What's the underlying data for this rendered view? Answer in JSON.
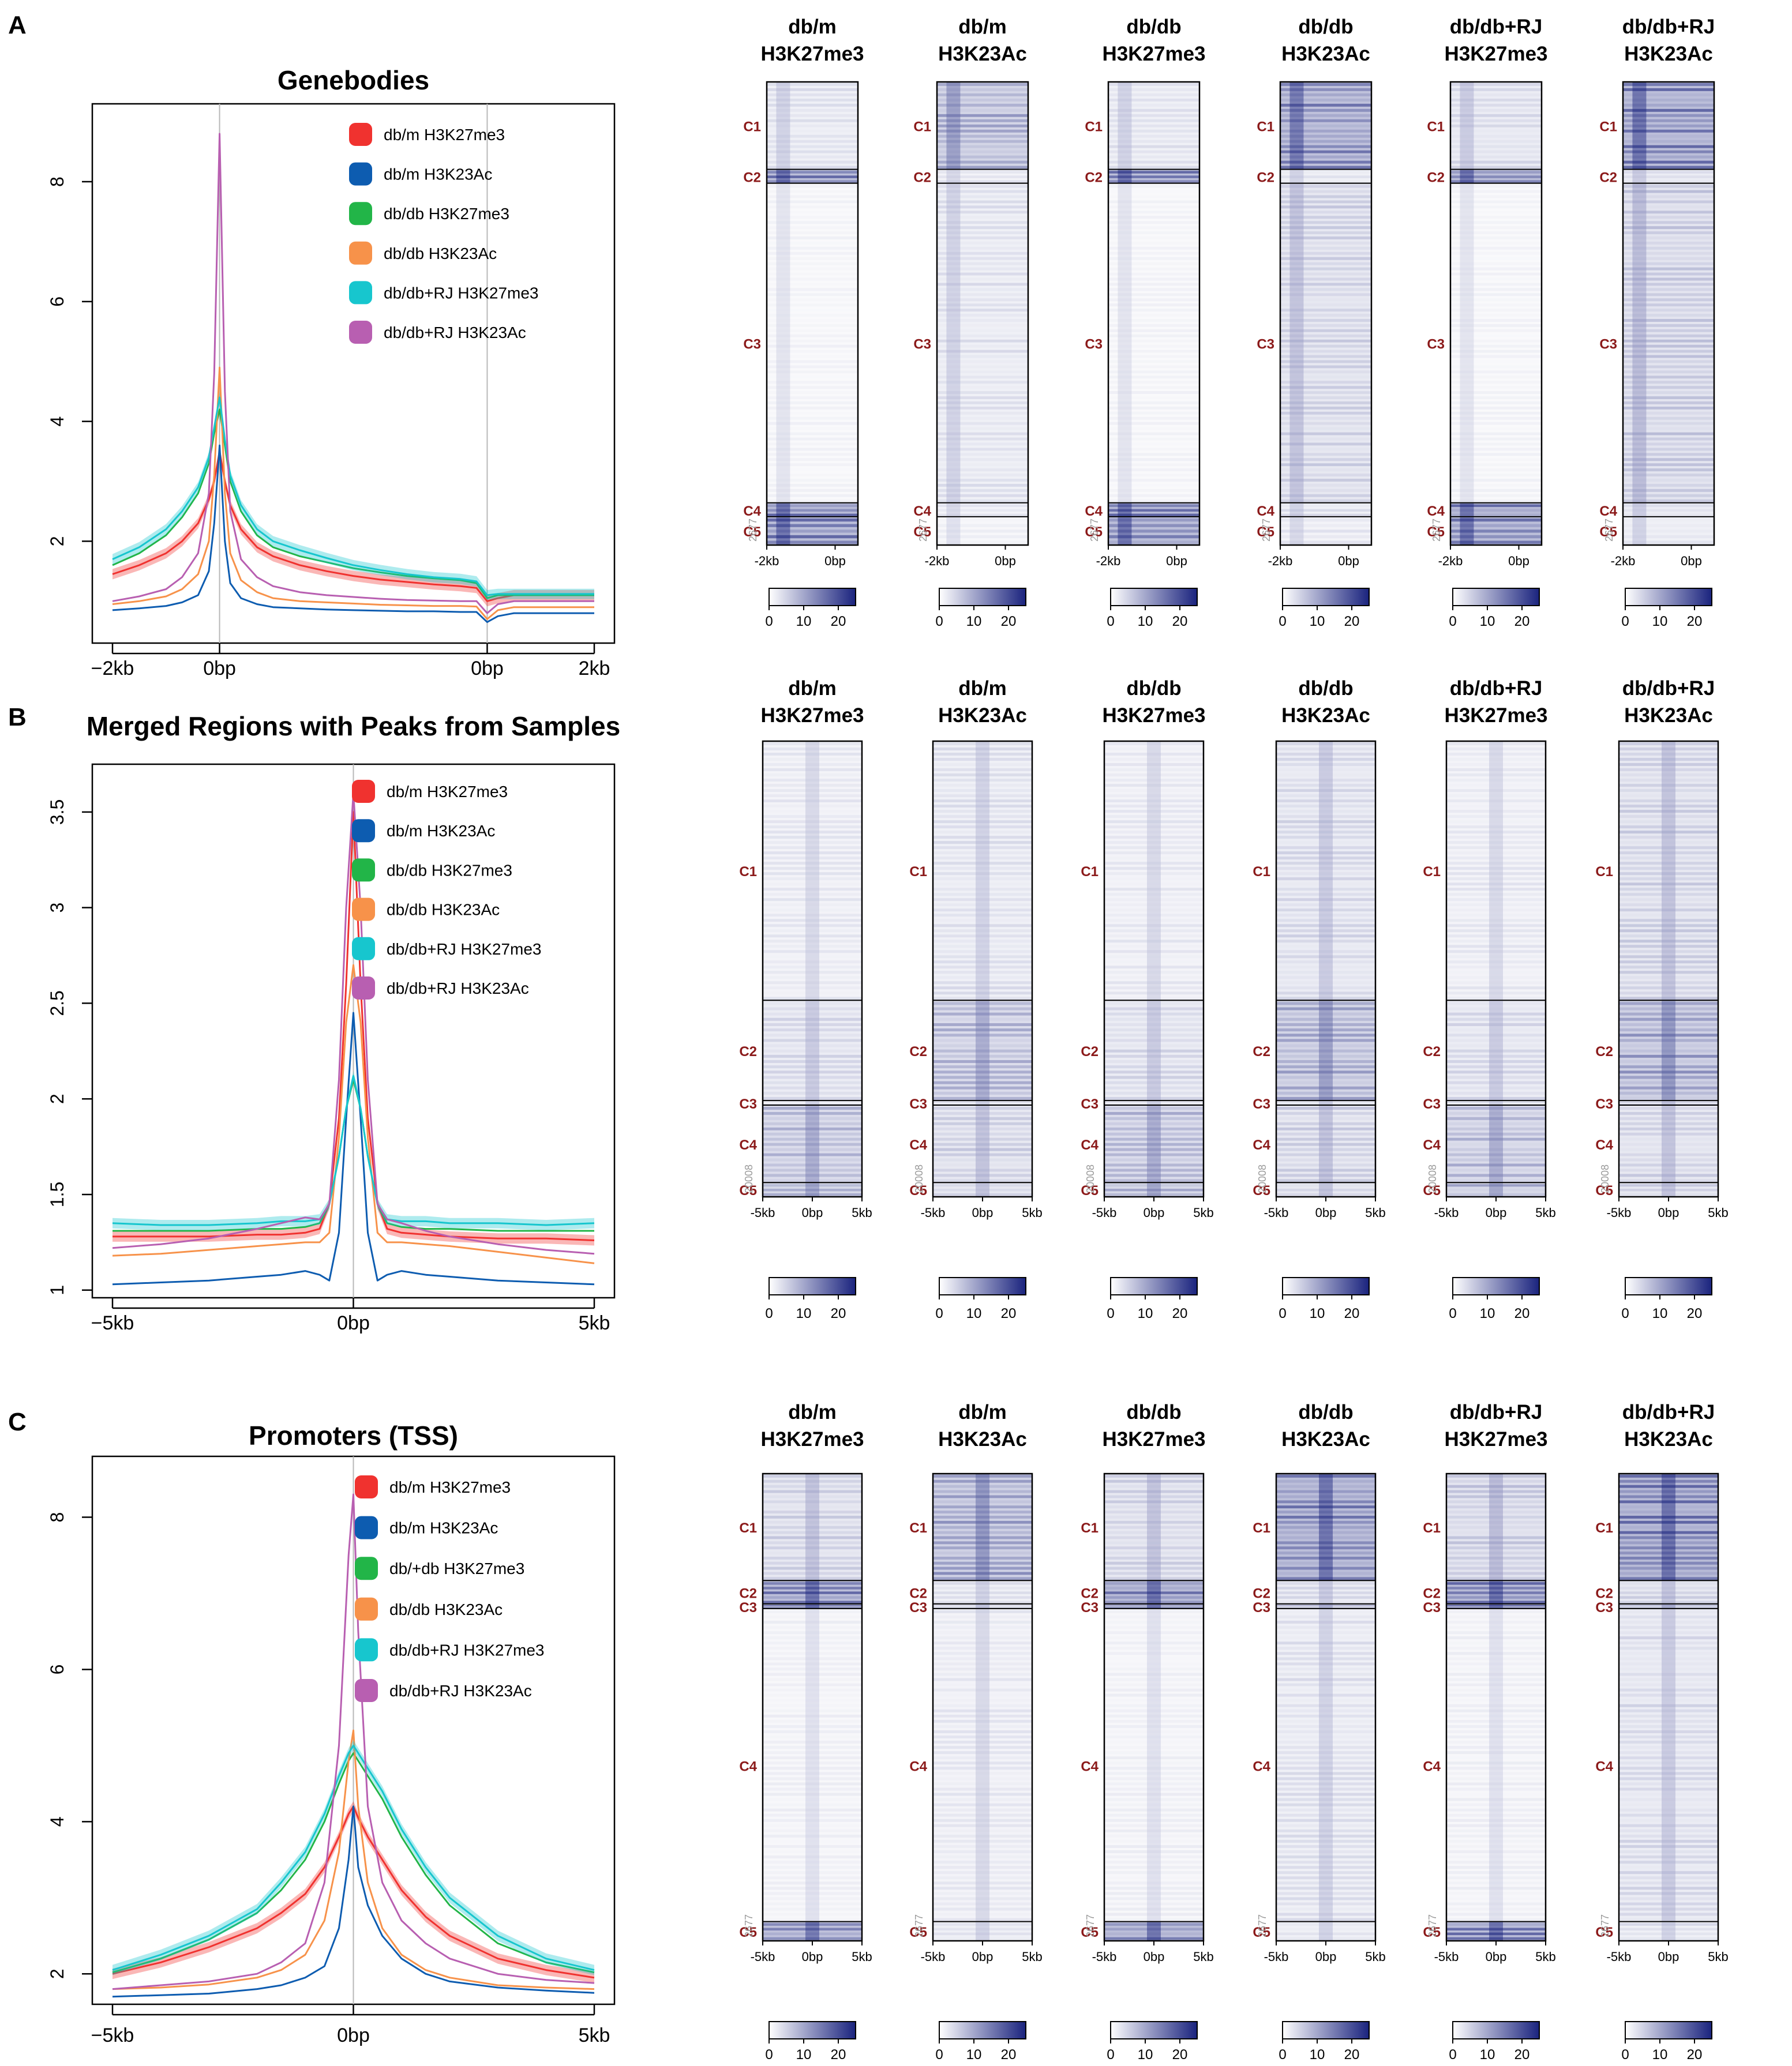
{
  "figure": {
    "panels": [
      {
        "letter": "A"
      },
      {
        "letter": "B"
      },
      {
        "letter": "C"
      }
    ]
  },
  "chart_data": [
    {
      "type": "line",
      "panel": "A",
      "title": "Genebodies",
      "xlabel": "",
      "ylabel": "",
      "x_ticks": [
        "−2kb",
        "0bp",
        "0bp",
        "2kb"
      ],
      "x_domain": [
        -2,
        7
      ],
      "x_tick_values": [
        -2,
        0,
        5,
        7
      ],
      "vlines": [
        0,
        5
      ],
      "ylim": [
        0.3,
        9.3
      ],
      "y_ticks": [
        2,
        4,
        6,
        8
      ],
      "legend_position": "top-right",
      "x": [
        -2,
        -1.5,
        -1,
        -0.7,
        -0.4,
        -0.2,
        -0.1,
        0,
        0.1,
        0.2,
        0.4,
        0.7,
        1,
        1.5,
        2,
        2.5,
        3,
        3.5,
        4,
        4.5,
        4.8,
        5,
        5.2,
        5.5,
        6,
        6.5,
        7
      ],
      "series": [
        {
          "name": "db/m H3K27me3",
          "color": "#f0322f",
          "band": true,
          "values": [
            1.45,
            1.6,
            1.8,
            2.0,
            2.3,
            2.7,
            3.0,
            3.5,
            3.0,
            2.6,
            2.2,
            1.9,
            1.75,
            1.6,
            1.5,
            1.42,
            1.36,
            1.32,
            1.28,
            1.25,
            1.22,
            1.0,
            1.05,
            1.1,
            1.1,
            1.1,
            1.1
          ]
        },
        {
          "name": "db/m H3K23Ac",
          "color": "#0d5cb0",
          "band": false,
          "values": [
            0.85,
            0.88,
            0.92,
            0.98,
            1.1,
            1.5,
            2.3,
            3.6,
            2.0,
            1.3,
            1.05,
            0.95,
            0.9,
            0.88,
            0.86,
            0.85,
            0.84,
            0.83,
            0.83,
            0.82,
            0.82,
            0.65,
            0.75,
            0.8,
            0.8,
            0.8,
            0.8
          ]
        },
        {
          "name": "db/db H3K27me3",
          "color": "#22b548",
          "band": false,
          "values": [
            1.6,
            1.8,
            2.1,
            2.4,
            2.8,
            3.3,
            3.8,
            4.2,
            3.6,
            3.0,
            2.5,
            2.1,
            1.9,
            1.75,
            1.65,
            1.55,
            1.48,
            1.42,
            1.38,
            1.35,
            1.3,
            1.05,
            1.1,
            1.1,
            1.1,
            1.1,
            1.1
          ]
        },
        {
          "name": "db/db H3K23Ac",
          "color": "#f7924a",
          "band": false,
          "values": [
            0.95,
            1.0,
            1.08,
            1.2,
            1.45,
            2.0,
            3.1,
            4.9,
            2.8,
            1.8,
            1.35,
            1.15,
            1.05,
            1.0,
            0.98,
            0.96,
            0.94,
            0.93,
            0.92,
            0.92,
            0.91,
            0.7,
            0.85,
            0.9,
            0.9,
            0.9,
            0.9
          ]
        },
        {
          "name": "db/db+RJ H3K27me3",
          "color": "#17c6ce",
          "band": true,
          "values": [
            1.7,
            1.9,
            2.2,
            2.5,
            2.9,
            3.4,
            3.9,
            4.4,
            3.7,
            3.1,
            2.6,
            2.2,
            2.0,
            1.85,
            1.72,
            1.6,
            1.52,
            1.45,
            1.4,
            1.37,
            1.33,
            1.1,
            1.12,
            1.12,
            1.12,
            1.12,
            1.12
          ]
        },
        {
          "name": "db/db+RJ H3K23Ac",
          "color": "#b85fb1",
          "band": false,
          "values": [
            1.0,
            1.08,
            1.2,
            1.4,
            1.8,
            2.8,
            4.8,
            8.8,
            4.5,
            2.5,
            1.7,
            1.4,
            1.25,
            1.15,
            1.1,
            1.07,
            1.04,
            1.02,
            1.01,
            1.0,
            1.0,
            0.8,
            0.95,
            1.0,
            1.0,
            1.0,
            1.0
          ]
        }
      ]
    },
    {
      "type": "line",
      "panel": "B",
      "title": "Merged Regions with Peaks from Samples",
      "xlabel": "",
      "ylabel": "",
      "x_ticks": [
        "−5kb",
        "0bp",
        "5kb"
      ],
      "x_domain": [
        -5,
        5
      ],
      "x_tick_values": [
        -5,
        0,
        5
      ],
      "vlines": [
        0
      ],
      "ylim": [
        0.96,
        3.75
      ],
      "y_ticks": [
        1.0,
        1.5,
        2.0,
        2.5,
        3.0,
        3.5
      ],
      "legend_position": "top-right",
      "x": [
        -5,
        -4,
        -3,
        -2,
        -1.5,
        -1,
        -0.7,
        -0.5,
        -0.3,
        -0.15,
        0,
        0.15,
        0.3,
        0.5,
        0.7,
        1,
        1.5,
        2,
        3,
        4,
        5
      ],
      "series": [
        {
          "name": "db/m H3K27me3",
          "color": "#f0322f",
          "band": true,
          "values": [
            1.28,
            1.28,
            1.28,
            1.29,
            1.29,
            1.3,
            1.32,
            1.45,
            1.9,
            2.6,
            3.5,
            2.6,
            1.9,
            1.45,
            1.32,
            1.3,
            1.29,
            1.28,
            1.27,
            1.27,
            1.26
          ]
        },
        {
          "name": "db/m H3K23Ac",
          "color": "#0d5cb0",
          "band": false,
          "values": [
            1.03,
            1.04,
            1.05,
            1.07,
            1.08,
            1.1,
            1.08,
            1.05,
            1.3,
            1.9,
            2.45,
            1.9,
            1.3,
            1.05,
            1.08,
            1.1,
            1.08,
            1.07,
            1.05,
            1.04,
            1.03
          ]
        },
        {
          "name": "db/db H3K27me3",
          "color": "#22b548",
          "band": false,
          "values": [
            1.31,
            1.31,
            1.31,
            1.32,
            1.32,
            1.33,
            1.35,
            1.45,
            1.7,
            1.95,
            2.1,
            1.95,
            1.7,
            1.45,
            1.35,
            1.33,
            1.32,
            1.32,
            1.31,
            1.31,
            1.31
          ]
        },
        {
          "name": "db/db H3K23Ac",
          "color": "#f7924a",
          "band": false,
          "values": [
            1.18,
            1.19,
            1.21,
            1.23,
            1.24,
            1.25,
            1.25,
            1.3,
            1.8,
            2.4,
            2.7,
            2.4,
            1.8,
            1.3,
            1.25,
            1.25,
            1.24,
            1.23,
            1.2,
            1.17,
            1.14
          ]
        },
        {
          "name": "db/db+RJ H3K27me3",
          "color": "#17c6ce",
          "band": true,
          "values": [
            1.35,
            1.34,
            1.34,
            1.35,
            1.36,
            1.36,
            1.37,
            1.45,
            1.7,
            1.95,
            2.12,
            1.95,
            1.7,
            1.45,
            1.37,
            1.36,
            1.36,
            1.35,
            1.35,
            1.34,
            1.35
          ]
        },
        {
          "name": "db/db+RJ H3K23Ac",
          "color": "#b85fb1",
          "band": false,
          "values": [
            1.22,
            1.24,
            1.27,
            1.32,
            1.35,
            1.38,
            1.37,
            1.45,
            2.1,
            3.0,
            3.6,
            3.0,
            2.1,
            1.45,
            1.37,
            1.35,
            1.31,
            1.28,
            1.24,
            1.21,
            1.19
          ]
        }
      ]
    },
    {
      "type": "line",
      "panel": "C",
      "title": "Promoters (TSS)",
      "xlabel": "",
      "ylabel": "",
      "x_ticks": [
        "−5kb",
        "0bp",
        "5kb"
      ],
      "x_domain": [
        -5,
        5
      ],
      "x_tick_values": [
        -5,
        0,
        5
      ],
      "vlines": [
        0
      ],
      "ylim": [
        1.6,
        8.8
      ],
      "y_ticks": [
        2,
        4,
        6,
        8
      ],
      "legend_position": "top-right",
      "x": [
        -5,
        -4,
        -3,
        -2,
        -1.5,
        -1,
        -0.6,
        -0.3,
        -0.1,
        0,
        0.1,
        0.3,
        0.6,
        1,
        1.5,
        2,
        3,
        4,
        5
      ],
      "series": [
        {
          "name": "db/m H3K27me3",
          "color": "#f0322f",
          "band": true,
          "values": [
            2.0,
            2.15,
            2.35,
            2.6,
            2.8,
            3.05,
            3.4,
            3.8,
            4.1,
            4.2,
            4.05,
            3.8,
            3.5,
            3.1,
            2.75,
            2.5,
            2.2,
            2.05,
            1.95
          ]
        },
        {
          "name": "db/m H3K23Ac",
          "color": "#0d5cb0",
          "band": false,
          "values": [
            1.7,
            1.72,
            1.74,
            1.8,
            1.85,
            1.95,
            2.1,
            2.6,
            3.5,
            4.2,
            3.4,
            2.9,
            2.5,
            2.2,
            2.0,
            1.9,
            1.82,
            1.78,
            1.75
          ]
        },
        {
          "name": "db/+db H3K27me3",
          "color": "#22b548",
          "band": false,
          "values": [
            2.02,
            2.2,
            2.45,
            2.8,
            3.1,
            3.5,
            4.0,
            4.5,
            4.8,
            4.9,
            4.8,
            4.6,
            4.3,
            3.8,
            3.3,
            2.9,
            2.4,
            2.15,
            2.02
          ]
        },
        {
          "name": "db/db H3K23Ac",
          "color": "#f7924a",
          "band": false,
          "values": [
            1.8,
            1.82,
            1.86,
            1.95,
            2.05,
            2.25,
            2.7,
            3.6,
            4.8,
            5.2,
            4.2,
            3.2,
            2.6,
            2.25,
            2.05,
            1.95,
            1.85,
            1.82,
            1.8
          ]
        },
        {
          "name": "db/db+RJ H3K27me3",
          "color": "#17c6ce",
          "band": true,
          "values": [
            2.05,
            2.25,
            2.5,
            2.85,
            3.2,
            3.6,
            4.1,
            4.6,
            4.9,
            5.0,
            4.9,
            4.7,
            4.4,
            3.9,
            3.4,
            3.0,
            2.5,
            2.2,
            2.05
          ]
        },
        {
          "name": "db/db+RJ H3K23Ac",
          "color": "#b85fb1",
          "band": false,
          "values": [
            1.8,
            1.85,
            1.9,
            2.0,
            2.15,
            2.4,
            3.2,
            5.0,
            7.5,
            8.3,
            6.5,
            4.2,
            3.2,
            2.7,
            2.4,
            2.2,
            2.0,
            1.92,
            1.88
          ]
        }
      ]
    },
    {
      "type": "heatmap",
      "panel": "A",
      "samples": [
        {
          "title": [
            "db/m",
            "H3K27me3"
          ],
          "intensity": [
            0.2,
            0.85,
            0.08,
            0.9,
            0.85
          ]
        },
        {
          "title": [
            "db/m",
            "H3K23Ac"
          ],
          "intensity": [
            0.55,
            0.15,
            0.2,
            0.15,
            0.1
          ]
        },
        {
          "title": [
            "db/db",
            "H3K27me3"
          ],
          "intensity": [
            0.2,
            0.85,
            0.08,
            0.9,
            0.85
          ]
        },
        {
          "title": [
            "db/db",
            "H3K23Ac"
          ],
          "intensity": [
            0.8,
            0.2,
            0.3,
            0.2,
            0.15
          ]
        },
        {
          "title": [
            "db/db+RJ",
            "H3K27me3"
          ],
          "intensity": [
            0.25,
            0.85,
            0.08,
            0.9,
            0.85
          ]
        },
        {
          "title": [
            "db/db+RJ",
            "H3K23Ac"
          ],
          "intensity": [
            0.85,
            0.25,
            0.35,
            0.25,
            0.2
          ]
        }
      ],
      "clusters": [
        "C1",
        "C2",
        "C3",
        "C4",
        "C5"
      ],
      "cluster_fractions": [
        0.19,
        0.03,
        0.69,
        0.03,
        0.06
      ],
      "x_ticks": [
        "-2kb",
        "0bp"
      ],
      "row_count_label": "2677",
      "colorbar_ticks": [
        "0",
        "10",
        "20"
      ],
      "colorbar_range": [
        0,
        25
      ]
    },
    {
      "type": "heatmap",
      "panel": "B",
      "samples": [
        {
          "title": [
            "db/m",
            "H3K27me3"
          ],
          "intensity": [
            0.15,
            0.25,
            0.2,
            0.45,
            0.5
          ]
        },
        {
          "title": [
            "db/m",
            "H3K23Ac"
          ],
          "intensity": [
            0.2,
            0.45,
            0.2,
            0.3,
            0.3
          ]
        },
        {
          "title": [
            "db/db",
            "H3K27me3"
          ],
          "intensity": [
            0.15,
            0.25,
            0.2,
            0.45,
            0.5
          ]
        },
        {
          "title": [
            "db/db",
            "H3K23Ac"
          ],
          "intensity": [
            0.25,
            0.55,
            0.25,
            0.3,
            0.3
          ]
        },
        {
          "title": [
            "db/db+RJ",
            "H3K27me3"
          ],
          "intensity": [
            0.15,
            0.25,
            0.2,
            0.45,
            0.5
          ]
        },
        {
          "title": [
            "db/db+RJ",
            "H3K23Ac"
          ],
          "intensity": [
            0.3,
            0.6,
            0.3,
            0.3,
            0.3
          ]
        }
      ],
      "clusters": [
        "C1",
        "C2",
        "C3",
        "C4",
        "C5"
      ],
      "cluster_fractions": [
        0.57,
        0.22,
        0.01,
        0.17,
        0.03
      ],
      "x_ticks": [
        "-5kb",
        "0bp",
        "5kb"
      ],
      "row_count_label": "20008",
      "colorbar_ticks": [
        "0",
        "10",
        "20"
      ],
      "colorbar_range": [
        0,
        25
      ]
    },
    {
      "type": "heatmap",
      "panel": "C",
      "samples": [
        {
          "title": [
            "db/m",
            "H3K27me3"
          ],
          "intensity": [
            0.3,
            0.85,
            0.9,
            0.1,
            0.8
          ]
        },
        {
          "title": [
            "db/m",
            "H3K23Ac"
          ],
          "intensity": [
            0.6,
            0.2,
            0.3,
            0.15,
            0.2
          ]
        },
        {
          "title": [
            "db/db",
            "H3K27me3"
          ],
          "intensity": [
            0.3,
            0.9,
            0.9,
            0.1,
            0.85
          ]
        },
        {
          "title": [
            "db/db",
            "H3K23Ac"
          ],
          "intensity": [
            0.85,
            0.25,
            0.4,
            0.2,
            0.2
          ]
        },
        {
          "title": [
            "db/db+RJ",
            "H3K27me3"
          ],
          "intensity": [
            0.35,
            0.9,
            0.9,
            0.1,
            0.85
          ]
        },
        {
          "title": [
            "db/db+RJ",
            "H3K23Ac"
          ],
          "intensity": [
            0.9,
            0.3,
            0.45,
            0.25,
            0.2
          ]
        }
      ],
      "clusters": [
        "C1",
        "C2",
        "C3",
        "C4",
        "C5"
      ],
      "cluster_fractions": [
        0.23,
        0.05,
        0.01,
        0.67,
        0.04
      ],
      "x_ticks": [
        "-5kb",
        "0bp",
        "5kb"
      ],
      "row_count_label": "2677",
      "colorbar_ticks": [
        "0",
        "10",
        "20"
      ],
      "colorbar_range": [
        0,
        25
      ]
    }
  ]
}
